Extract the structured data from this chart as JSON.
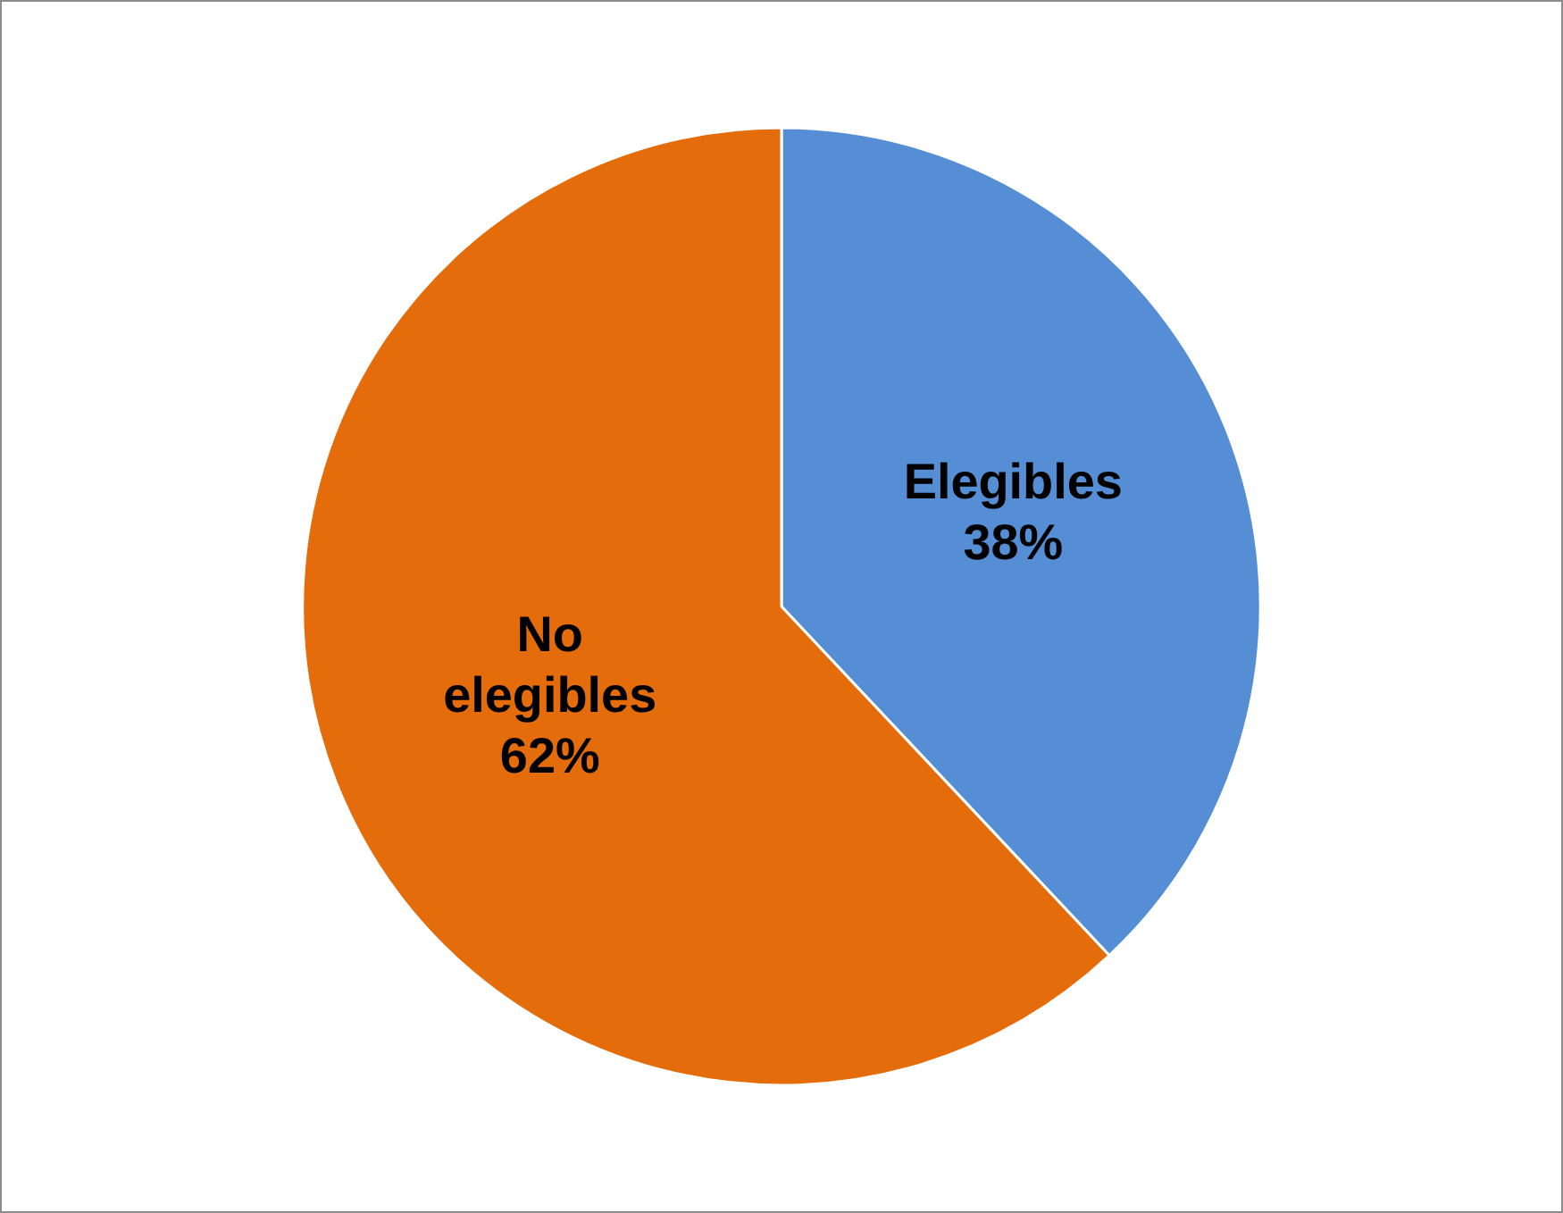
{
  "chart_data": {
    "type": "pie",
    "categories": [
      "Elegibles",
      "No elegibles"
    ],
    "values": [
      38,
      62
    ],
    "colors": [
      "#558ed5",
      "#e46c0a"
    ],
    "value_labels": [
      "38%",
      "62%"
    ],
    "legend": false
  }
}
